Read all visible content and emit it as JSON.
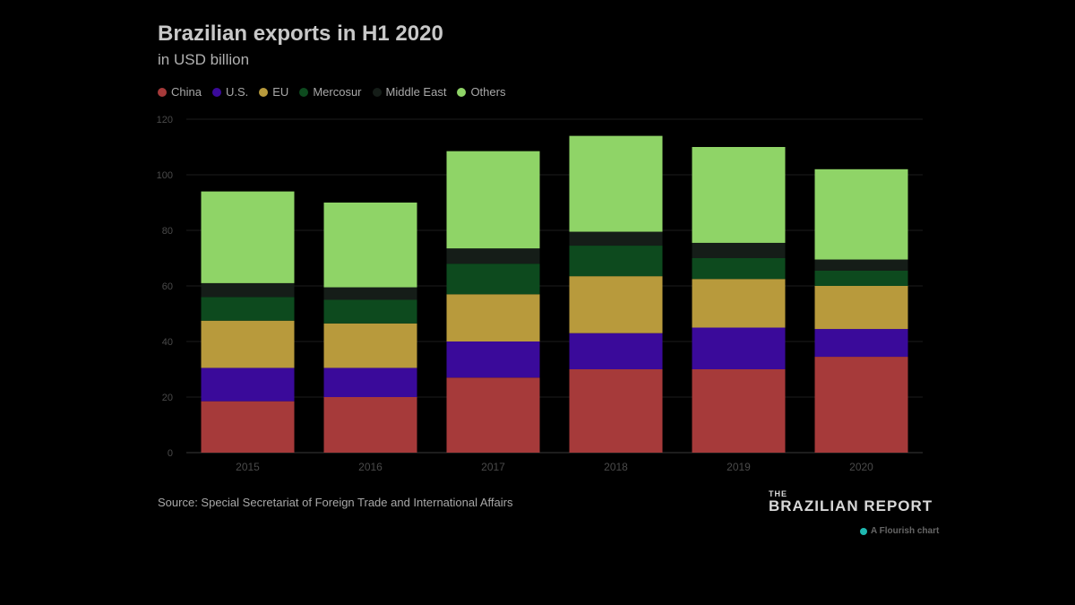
{
  "title": "Brazilian exports in H1 2020",
  "subtitle": "in USD billion",
  "source": "Source: Special Secretariat of Foreign Trade and International Affairs",
  "brand": {
    "the": "THE",
    "name": "BRAZILIAN REPORT"
  },
  "flourish": "A Flourish chart",
  "colors": {
    "China": "#a63a3a",
    "U.S.": "#3a0a9a",
    "EU": "#b89a3c",
    "Mercosur": "#0d4a1e",
    "Middle East": "#151d18",
    "Others": "#8fd467"
  },
  "chart_data": {
    "type": "bar",
    "stacked": true,
    "categories": [
      "2015",
      "2016",
      "2017",
      "2018",
      "2019",
      "2020"
    ],
    "series": [
      {
        "name": "China",
        "values": [
          18.5,
          20,
          27,
          30,
          30,
          34.5
        ]
      },
      {
        "name": "U.S.",
        "values": [
          12,
          10.5,
          13,
          13,
          15,
          10
        ]
      },
      {
        "name": "EU",
        "values": [
          17,
          16,
          17,
          20.5,
          17.5,
          15.5
        ]
      },
      {
        "name": "Mercosur",
        "values": [
          8.5,
          8.5,
          11,
          11,
          7.5,
          5.5
        ]
      },
      {
        "name": "Middle East",
        "values": [
          5,
          4.5,
          5.5,
          5,
          5.5,
          4
        ]
      },
      {
        "name": "Others",
        "values": [
          33,
          30.5,
          35,
          34.5,
          34.5,
          32.5
        ]
      }
    ],
    "yticks": [
      "0",
      "20",
      "40",
      "60",
      "80",
      "100",
      "120"
    ],
    "ylim": [
      0,
      120
    ],
    "grid": true,
    "legend": "top-left"
  }
}
